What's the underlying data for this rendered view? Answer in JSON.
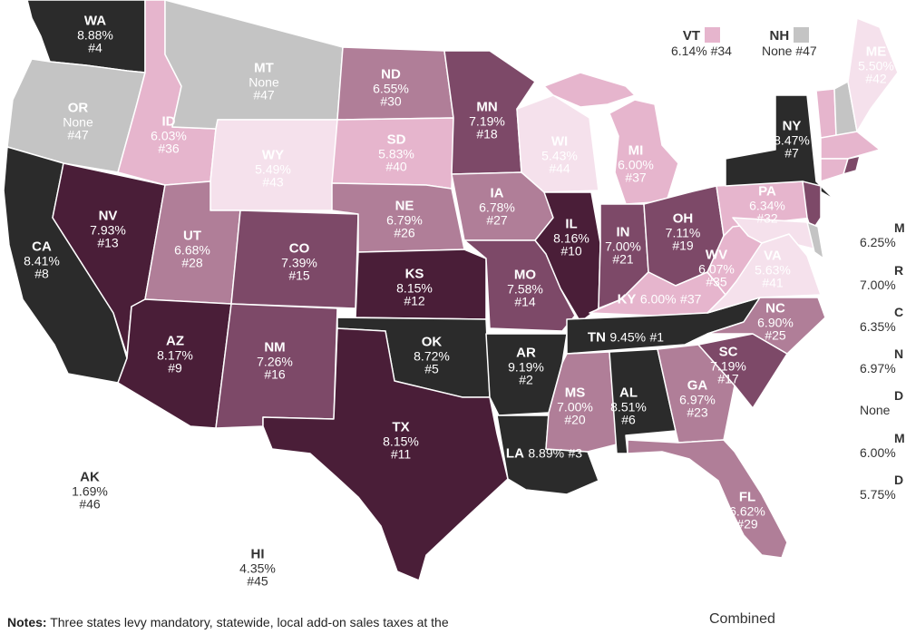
{
  "colors": {
    "none": "#c4c4c4",
    "bin1": "#f5e1ec",
    "bin2": "#e6b5cd",
    "bin3": "#b07e98",
    "bin4": "#7d4968",
    "bin5": "#4a1e38",
    "bin6": "#2b2b2b"
  },
  "states": [
    {
      "abbr": "WA",
      "rate": "8.88%",
      "rank": "#4",
      "bin": "bin6"
    },
    {
      "abbr": "OR",
      "rate": "None",
      "rank": "#47",
      "bin": "none"
    },
    {
      "abbr": "CA",
      "rate": "8.41%",
      "rank": "#8",
      "bin": "bin6"
    },
    {
      "abbr": "NV",
      "rate": "7.93%",
      "rank": "#13",
      "bin": "bin5"
    },
    {
      "abbr": "ID",
      "rate": "6.03%",
      "rank": "#36",
      "bin": "bin2"
    },
    {
      "abbr": "MT",
      "rate": "None",
      "rank": "#47",
      "bin": "none"
    },
    {
      "abbr": "WY",
      "rate": "5.49%",
      "rank": "#43",
      "bin": "bin1"
    },
    {
      "abbr": "UT",
      "rate": "6.68%",
      "rank": "#28",
      "bin": "bin3"
    },
    {
      "abbr": "AZ",
      "rate": "8.17%",
      "rank": "#9",
      "bin": "bin5"
    },
    {
      "abbr": "CO",
      "rate": "7.39%",
      "rank": "#15",
      "bin": "bin4"
    },
    {
      "abbr": "NM",
      "rate": "7.26%",
      "rank": "#16",
      "bin": "bin4"
    },
    {
      "abbr": "ND",
      "rate": "6.55%",
      "rank": "#30",
      "bin": "bin3"
    },
    {
      "abbr": "SD",
      "rate": "5.83%",
      "rank": "#40",
      "bin": "bin2"
    },
    {
      "abbr": "NE",
      "rate": "6.79%",
      "rank": "#26",
      "bin": "bin3"
    },
    {
      "abbr": "KS",
      "rate": "8.15%",
      "rank": "#12",
      "bin": "bin5"
    },
    {
      "abbr": "OK",
      "rate": "8.72%",
      "rank": "#5",
      "bin": "bin6"
    },
    {
      "abbr": "TX",
      "rate": "8.15%",
      "rank": "#11",
      "bin": "bin5"
    },
    {
      "abbr": "MN",
      "rate": "7.19%",
      "rank": "#18",
      "bin": "bin4"
    },
    {
      "abbr": "IA",
      "rate": "6.78%",
      "rank": "#27",
      "bin": "bin3"
    },
    {
      "abbr": "MO",
      "rate": "7.58%",
      "rank": "#14",
      "bin": "bin4"
    },
    {
      "abbr": "AR",
      "rate": "9.19%",
      "rank": "#2",
      "bin": "bin6"
    },
    {
      "abbr": "LA",
      "rate": "8.89%",
      "rank": "#3",
      "bin": "bin6"
    },
    {
      "abbr": "WI",
      "rate": "5.43%",
      "rank": "#44",
      "bin": "bin1"
    },
    {
      "abbr": "IL",
      "rate": "8.16%",
      "rank": "#10",
      "bin": "bin5"
    },
    {
      "abbr": "MI",
      "rate": "6.00%",
      "rank": "#37",
      "bin": "bin2"
    },
    {
      "abbr": "IN",
      "rate": "7.00%",
      "rank": "#21",
      "bin": "bin4"
    },
    {
      "abbr": "OH",
      "rate": "7.11%",
      "rank": "#19",
      "bin": "bin4"
    },
    {
      "abbr": "KY",
      "rate": "6.00%",
      "rank": "#37",
      "bin": "bin2"
    },
    {
      "abbr": "TN",
      "rate": "9.45%",
      "rank": "#1",
      "bin": "bin6"
    },
    {
      "abbr": "MS",
      "rate": "7.00%",
      "rank": "#20",
      "bin": "bin3"
    },
    {
      "abbr": "AL",
      "rate": "8.51%",
      "rank": "#6",
      "bin": "bin6"
    },
    {
      "abbr": "GA",
      "rate": "6.97%",
      "rank": "#23",
      "bin": "bin3"
    },
    {
      "abbr": "FL",
      "rate": "6.62%",
      "rank": "#29",
      "bin": "bin3"
    },
    {
      "abbr": "SC",
      "rate": "7.19%",
      "rank": "#17",
      "bin": "bin4"
    },
    {
      "abbr": "NC",
      "rate": "6.90%",
      "rank": "#25",
      "bin": "bin3"
    },
    {
      "abbr": "VA",
      "rate": "5.63%",
      "rank": "#41",
      "bin": "bin1"
    },
    {
      "abbr": "WV",
      "rate": "6.07%",
      "rank": "#35",
      "bin": "bin2"
    },
    {
      "abbr": "PA",
      "rate": "6.34%",
      "rank": "#32",
      "bin": "bin2"
    },
    {
      "abbr": "NY",
      "rate": "8.47%",
      "rank": "#7",
      "bin": "bin6"
    },
    {
      "abbr": "ME",
      "rate": "5.50%",
      "rank": "#42",
      "bin": "bin1"
    },
    {
      "abbr": "AK",
      "rate": "1.69%",
      "rank": "#46",
      "bin": "bin1"
    },
    {
      "abbr": "HI",
      "rate": "4.35%",
      "rank": "#45",
      "bin": "bin1"
    }
  ],
  "callouts": {
    "vt": {
      "abbr": "VT",
      "value": "6.14% #34",
      "color": "#e6b5cd"
    },
    "nh": {
      "abbr": "NH",
      "value": "None #47",
      "color": "#c4c4c4"
    }
  },
  "side_list": [
    {
      "abbr": "M",
      "value": "6.25%"
    },
    {
      "abbr": "R",
      "value": "7.00%"
    },
    {
      "abbr": "C",
      "value": "6.35%"
    },
    {
      "abbr": "N",
      "value": "6.97%"
    },
    {
      "abbr": "D",
      "value": "None"
    },
    {
      "abbr": "M",
      "value": "6.00%"
    },
    {
      "abbr": "D",
      "value": "5.75%"
    }
  ],
  "notes": {
    "label": "Notes:",
    "text": "Three states levy mandatory, statewide, local add-on sales taxes at the"
  },
  "combined_label": "Combined"
}
